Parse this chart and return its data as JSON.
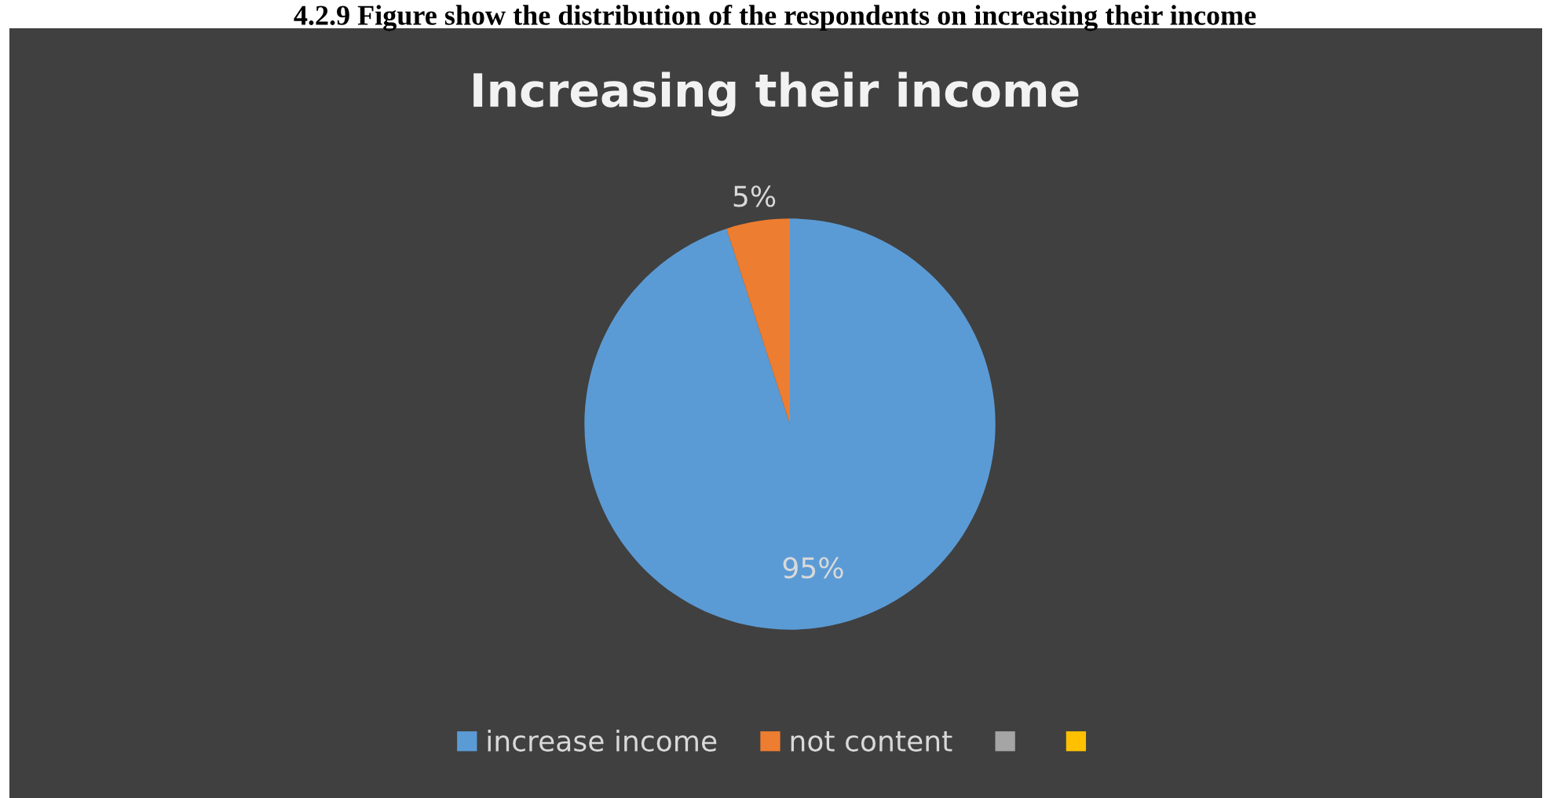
{
  "chart_data": {
    "type": "pie",
    "title": "Increasing their income",
    "annotations": [
      "4.2.9 Figure show the distribution of the respondents on increasing their income"
    ],
    "categories": [
      "increase income",
      "not content",
      null,
      null
    ],
    "values": [
      95,
      5,
      0,
      0
    ],
    "colors": [
      "#5b9bd5",
      "#ed7d31",
      "#a5a5a5",
      "#ffc000"
    ],
    "value_labels": [
      "95%",
      "5%",
      null,
      null
    ],
    "legend": "bottom"
  }
}
